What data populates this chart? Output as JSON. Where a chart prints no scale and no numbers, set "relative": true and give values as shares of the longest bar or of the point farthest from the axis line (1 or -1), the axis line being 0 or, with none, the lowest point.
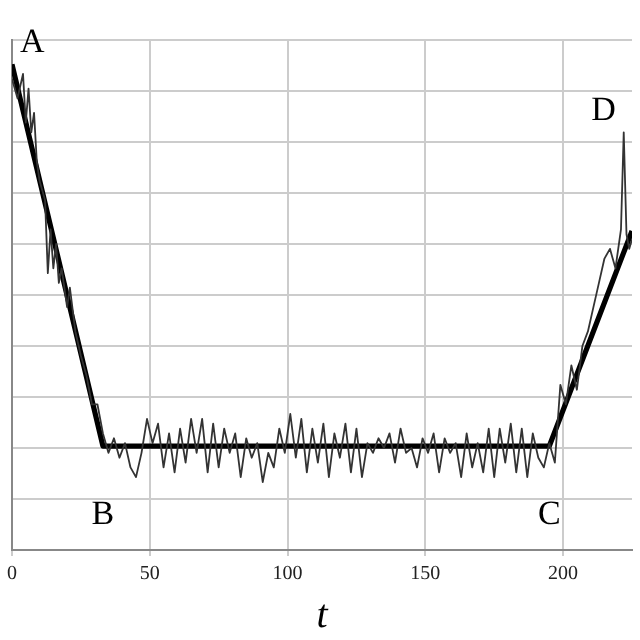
{
  "chart_data": {
    "type": "line",
    "xlabel": "t",
    "relative": true,
    "xlim": [
      0,
      225
    ],
    "xticks": [
      0,
      50,
      100,
      150,
      200
    ],
    "grid": true,
    "legend": false,
    "marker": "none",
    "series": [
      {
        "color": "#333333",
        "x": [
          0,
          2,
          4,
          5,
          6,
          7,
          8,
          9,
          10,
          12,
          13,
          14,
          15,
          16,
          17,
          18,
          20,
          21,
          23,
          25,
          27,
          29,
          31,
          33,
          35,
          37,
          39,
          41,
          43,
          45,
          47,
          49,
          51,
          53,
          55,
          57,
          59,
          61,
          63,
          65,
          67,
          69,
          71,
          73,
          75,
          77,
          79,
          81,
          83,
          85,
          87,
          89,
          91,
          93,
          95,
          97,
          99,
          101,
          103,
          105,
          107,
          109,
          111,
          113,
          115,
          117,
          119,
          121,
          123,
          125,
          127,
          129,
          131,
          133,
          135,
          137,
          139,
          141,
          143,
          145,
          147,
          149,
          151,
          153,
          155,
          157,
          159,
          161,
          163,
          165,
          167,
          169,
          171,
          173,
          175,
          177,
          179,
          181,
          183,
          185,
          187,
          189,
          191,
          193,
          195,
          197,
          199,
          201,
          203,
          205,
          207,
          209,
          211,
          213,
          215,
          217,
          219,
          221,
          222,
          223,
          224,
          225
        ],
        "values": [
          0.97,
          0.93,
          0.98,
          0.88,
          0.95,
          0.86,
          0.9,
          0.8,
          0.76,
          0.72,
          0.57,
          0.66,
          0.58,
          0.63,
          0.55,
          0.58,
          0.5,
          0.54,
          0.45,
          0.4,
          0.36,
          0.3,
          0.3,
          0.24,
          0.2,
          0.23,
          0.19,
          0.22,
          0.17,
          0.15,
          0.2,
          0.27,
          0.22,
          0.26,
          0.17,
          0.24,
          0.16,
          0.25,
          0.18,
          0.27,
          0.2,
          0.27,
          0.16,
          0.26,
          0.17,
          0.25,
          0.2,
          0.24,
          0.15,
          0.23,
          0.19,
          0.22,
          0.14,
          0.2,
          0.17,
          0.25,
          0.2,
          0.28,
          0.19,
          0.27,
          0.16,
          0.25,
          0.18,
          0.26,
          0.15,
          0.24,
          0.19,
          0.26,
          0.16,
          0.25,
          0.15,
          0.22,
          0.2,
          0.23,
          0.21,
          0.24,
          0.18,
          0.25,
          0.2,
          0.21,
          0.17,
          0.23,
          0.2,
          0.24,
          0.16,
          0.23,
          0.2,
          0.22,
          0.15,
          0.24,
          0.17,
          0.22,
          0.16,
          0.25,
          0.15,
          0.25,
          0.18,
          0.26,
          0.16,
          0.25,
          0.15,
          0.24,
          0.19,
          0.17,
          0.22,
          0.18,
          0.34,
          0.3,
          0.38,
          0.33,
          0.42,
          0.45,
          0.5,
          0.55,
          0.6,
          0.62,
          0.58,
          0.66,
          0.86,
          0.65,
          0.62,
          0.64
        ]
      },
      {
        "color": "#000000",
        "x": [
          0,
          33,
          195,
          225
        ],
        "values": [
          1,
          0.214,
          0.214,
          0.657
        ]
      }
    ],
    "annotations": [
      {
        "text": "A",
        "x": 0,
        "y": 1
      },
      {
        "text": "B",
        "x": 33,
        "y": 0.214
      },
      {
        "text": "C",
        "x": 195,
        "y": 0.214
      },
      {
        "text": "D",
        "x": 222,
        "y": 0.86
      }
    ]
  }
}
